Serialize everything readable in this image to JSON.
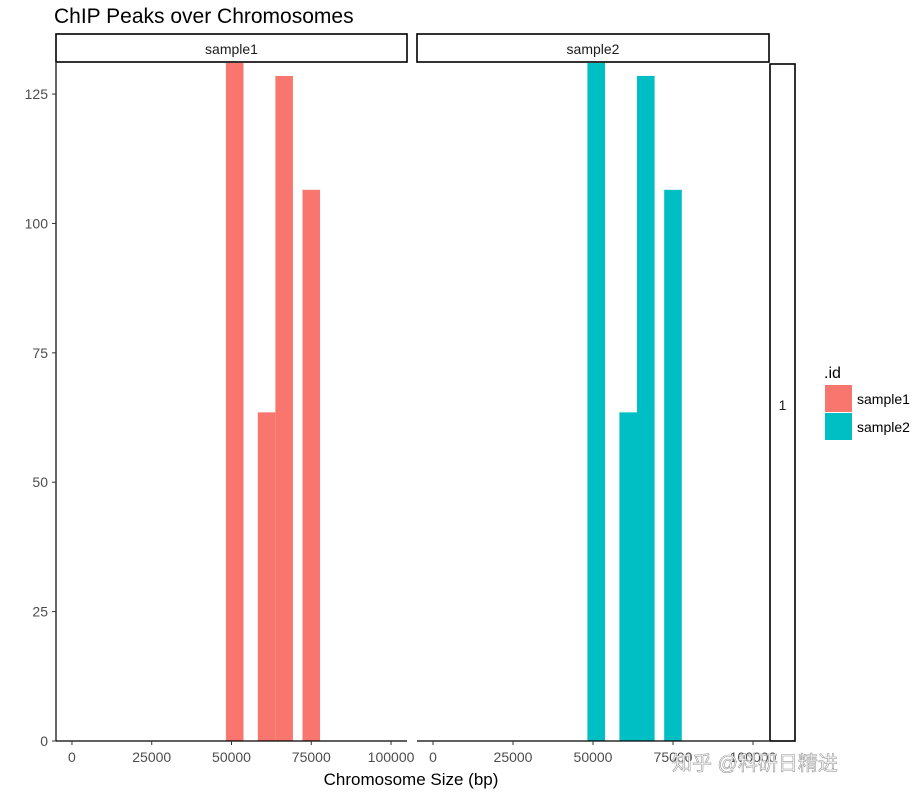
{
  "chart_data": {
    "type": "bar",
    "title": "ChIP Peaks over Chromosomes",
    "xlabel": "Chromosome Size (bp)",
    "ylabel": "",
    "xlim": [
      -5000,
      105000
    ],
    "ylim": [
      0,
      131
    ],
    "x_ticks": [
      0,
      25000,
      50000,
      75000,
      100000
    ],
    "x_tick_labels": [
      "0",
      "25000",
      "50000",
      "75000",
      "100000"
    ],
    "y_ticks": [
      0,
      25,
      50,
      75,
      100,
      125
    ],
    "y_tick_labels": [
      "0",
      "25",
      "50",
      "75",
      "100",
      "125"
    ],
    "grid": false,
    "legend": {
      "title": ".id",
      "position": "right"
    },
    "row_strip": "1",
    "bar_width": 5500,
    "series": [
      {
        "name": "sample1",
        "panel": "sample1",
        "color": "#F8766D",
        "bars": [
          {
            "x": 51000,
            "value": 131
          },
          {
            "x": 61000,
            "value": 63.5
          },
          {
            "x": 66500,
            "value": 128.5
          },
          {
            "x": 75000,
            "value": 106.5
          }
        ]
      },
      {
        "name": "sample2",
        "panel": "sample2",
        "color": "#00BFC4",
        "bars": [
          {
            "x": 51000,
            "value": 131
          },
          {
            "x": 61000,
            "value": 63.5
          },
          {
            "x": 66500,
            "value": 128.5
          },
          {
            "x": 75000,
            "value": 106.5
          }
        ]
      }
    ]
  },
  "watermark": "知乎 @科研日精进"
}
